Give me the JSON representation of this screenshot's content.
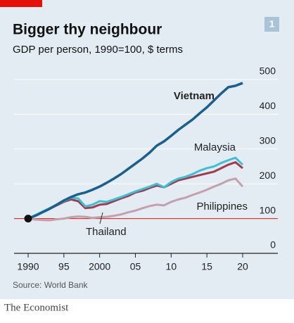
{
  "chart_data": {
    "type": "line",
    "title": "Bigger thy neighbour",
    "subtitle": "GDP per person, 1990=100, $ terms",
    "badge": "1",
    "source": "Source: World Bank",
    "brand": "The Economist",
    "x": [
      1990,
      1991,
      1992,
      1993,
      1994,
      1995,
      1996,
      1997,
      1998,
      1999,
      2000,
      2001,
      2002,
      2003,
      2004,
      2005,
      2006,
      2007,
      2008,
      2009,
      2010,
      2011,
      2012,
      2013,
      2014,
      2015,
      2016,
      2017,
      2018,
      2019,
      2020
    ],
    "series": [
      {
        "name": "Vietnam",
        "color": "#1b5f8f",
        "values": [
          100,
          108,
          118,
          128,
          140,
          152,
          162,
          170,
          175,
          183,
          192,
          203,
          215,
          228,
          243,
          258,
          273,
          290,
          310,
          322,
          338,
          355,
          370,
          385,
          403,
          420,
          440,
          460,
          478,
          482,
          490
        ]
      },
      {
        "name": "Malaysia",
        "color": "#3cc0d4",
        "values": [
          100,
          110,
          120,
          130,
          140,
          150,
          160,
          158,
          135,
          140,
          150,
          148,
          155,
          162,
          170,
          178,
          185,
          192,
          200,
          190,
          205,
          215,
          220,
          228,
          238,
          245,
          250,
          260,
          268,
          275,
          255
        ]
      },
      {
        "name": "Thailand",
        "color": "#a33a4e",
        "values": [
          100,
          108,
          118,
          128,
          138,
          148,
          155,
          150,
          130,
          132,
          140,
          142,
          150,
          158,
          165,
          175,
          180,
          188,
          195,
          190,
          200,
          210,
          215,
          220,
          225,
          230,
          235,
          245,
          255,
          262,
          245
        ]
      },
      {
        "name": "Philippines",
        "color": "#c4a0ad",
        "values": [
          100,
          97,
          96,
          95,
          98,
          100,
          104,
          106,
          105,
          102,
          104,
          105,
          108,
          112,
          118,
          123,
          130,
          136,
          140,
          138,
          148,
          155,
          160,
          168,
          175,
          183,
          192,
          200,
          210,
          215,
          192
        ]
      }
    ],
    "xlim": [
      1990,
      2020
    ],
    "ylim": [
      0,
      500
    ],
    "xticks": [
      {
        "value": 1990,
        "label": "1990"
      },
      {
        "value": 1995,
        "label": "95"
      },
      {
        "value": 2000,
        "label": "2000"
      },
      {
        "value": 2005,
        "label": "05"
      },
      {
        "value": 2010,
        "label": "10"
      },
      {
        "value": 2015,
        "label": "15"
      },
      {
        "value": 2020,
        "label": "20"
      }
    ],
    "yticks": [
      0,
      100,
      200,
      300,
      400,
      500
    ],
    "reference_line": 100,
    "grid": true
  }
}
